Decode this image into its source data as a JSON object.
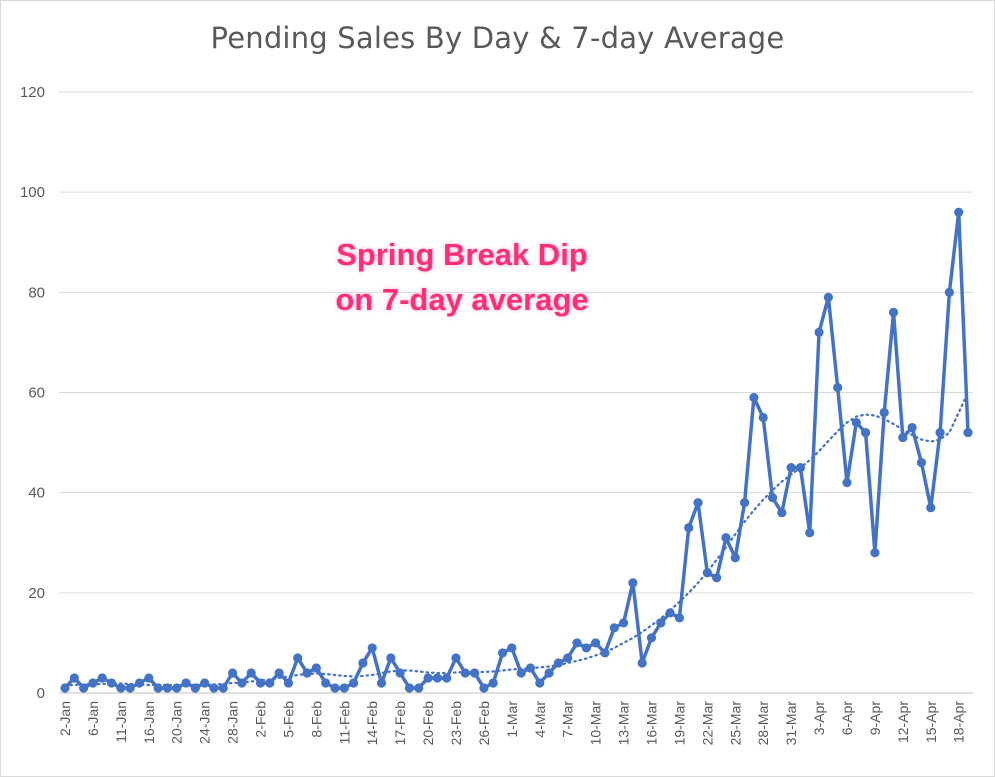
{
  "chart_data": {
    "type": "line",
    "title": "Pending Sales By Day & 7-day Average",
    "annotation": [
      "Spring Break Dip",
      "on 7-day average"
    ],
    "annotation_color": "#ff2d7a",
    "ylim": [
      0,
      120
    ],
    "y_ticks": [
      "0",
      "20",
      "40",
      "60",
      "80",
      "100",
      "120"
    ],
    "y_tick_values": [
      0,
      20,
      40,
      60,
      80,
      100,
      120
    ],
    "x_tick_labels": [
      "2-Jan",
      "6-Jan",
      "11-Jan",
      "16-Jan",
      "20-Jan",
      "24-Jan",
      "28-Jan",
      "2-Feb",
      "5-Feb",
      "8-Feb",
      "11-Feb",
      "14-Feb",
      "17-Feb",
      "20-Feb",
      "23-Feb",
      "26-Feb",
      "1-Mar",
      "4-Mar",
      "7-Mar",
      "10-Mar",
      "13-Mar",
      "16-Mar",
      "19-Mar",
      "22-Mar",
      "25-Mar",
      "28-Mar",
      "31-Mar",
      "3-Apr",
      "6-Apr",
      "9-Apr",
      "12-Apr",
      "15-Apr",
      "18-Apr"
    ],
    "x_tick_indices": [
      0,
      3,
      6,
      9,
      12,
      15,
      18,
      21,
      24,
      27,
      30,
      33,
      36,
      39,
      42,
      45,
      48,
      51,
      54,
      57,
      60,
      63,
      66,
      69,
      72,
      75,
      78,
      81,
      84,
      87,
      90,
      93,
      96
    ],
    "grid": true,
    "series": [
      {
        "style": "solid-markers",
        "color": "#4472c4",
        "values": [
          1,
          3,
          1,
          2,
          3,
          2,
          1,
          1,
          2,
          3,
          1,
          1,
          1,
          2,
          1,
          2,
          1,
          1,
          4,
          2,
          4,
          2,
          2,
          4,
          2,
          7,
          4,
          5,
          2,
          1,
          1,
          2,
          6,
          9,
          2,
          7,
          4,
          1,
          1,
          3,
          3,
          3,
          7,
          4,
          4,
          1,
          2,
          8,
          9,
          4,
          5,
          2,
          4,
          6,
          7,
          10,
          9,
          10,
          8,
          13,
          14,
          22,
          6,
          11,
          14,
          16,
          15,
          33,
          38,
          24,
          23,
          31,
          27,
          38,
          59,
          55,
          39,
          36,
          45,
          45,
          32,
          72,
          79,
          61,
          42,
          54,
          52,
          28,
          56,
          76,
          51,
          53,
          46,
          37,
          52,
          80,
          96,
          52
        ]
      },
      {
        "style": "dotted-trend",
        "color": "#4472c4",
        "values": [
          1.5,
          1.6,
          1.7,
          1.8,
          1.8,
          1.9,
          1.9,
          1.8,
          1.7,
          1.6,
          1.6,
          1.6,
          1.6,
          1.6,
          1.6,
          1.7,
          1.7,
          1.8,
          2.0,
          2.1,
          2.3,
          2.5,
          2.7,
          3.0,
          3.3,
          3.6,
          3.8,
          3.9,
          3.8,
          3.6,
          3.4,
          3.3,
          3.4,
          3.6,
          4.0,
          4.3,
          4.5,
          4.5,
          4.3,
          4.1,
          4.0,
          4.0,
          4.1,
          4.2,
          4.2,
          4.2,
          4.3,
          4.5,
          4.7,
          4.8,
          5.0,
          5.1,
          5.3,
          5.6,
          6.0,
          6.4,
          6.9,
          7.5,
          8.2,
          9.0,
          10.0,
          11.0,
          12.2,
          13.5,
          14.9,
          16.5,
          18.2,
          20.0,
          22.0,
          24.2,
          26.6,
          29.1,
          31.7,
          34.2,
          36.5,
          38.6,
          40.5,
          42.2,
          43.6,
          45.0,
          46.5,
          48.3,
          50.3,
          52.3,
          54.0,
          55.2,
          55.6,
          55.4,
          54.7,
          53.7,
          52.6,
          51.5,
          50.6,
          50.2,
          50.6,
          52.0,
          56.0,
          60.0
        ]
      }
    ]
  }
}
